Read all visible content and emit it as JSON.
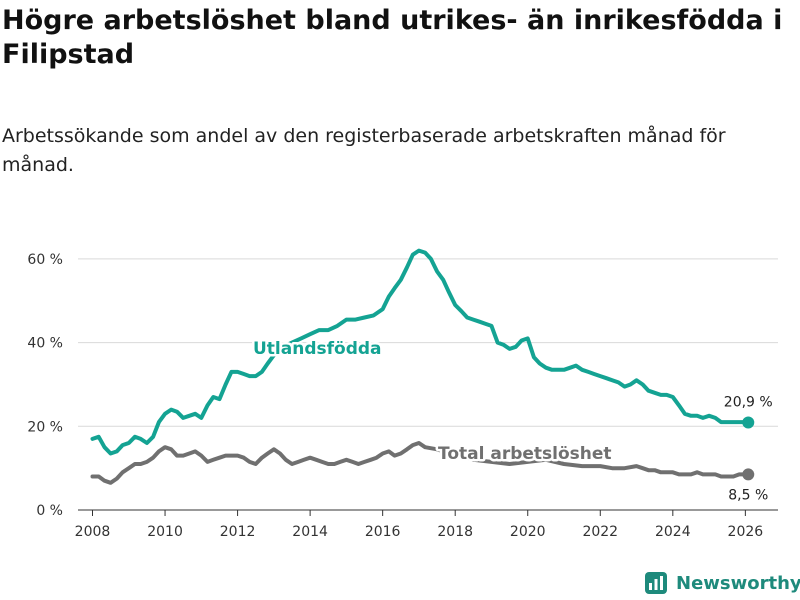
{
  "title": "Högre arbetslöshet bland utrikes- än inrikesfödda i Filipstad",
  "subtitle": "Arbetssökande som andel av den registerbaserade arbetskraften månad för månad.",
  "brand": {
    "name": "Newsworthy"
  },
  "colors": {
    "utlandsfodda": "#14a393",
    "total": "#707070",
    "grid": "#d9d9d9",
    "brand": "#1e8a7c"
  },
  "chart_data": {
    "type": "line",
    "title": "Högre arbetslöshet bland utrikes- än inrikesfödda i Filipstad",
    "xlabel": "",
    "ylabel": "",
    "ylim": [
      0,
      65
    ],
    "xlim": [
      2007.6,
      2026.9
    ],
    "y_ticks": [
      0,
      20,
      40,
      60
    ],
    "y_tick_labels": [
      "0 %",
      "20 %",
      "40 %",
      "60 %"
    ],
    "x_ticks": [
      2008,
      2010,
      2012,
      2014,
      2016,
      2018,
      2020,
      2022,
      2024,
      2026
    ],
    "x_tick_labels": [
      "2008",
      "2010",
      "2012",
      "2014",
      "2016",
      "2018",
      "2020",
      "2022",
      "2024",
      "2026"
    ],
    "series": [
      {
        "name": "Utlandsfödda",
        "label": "Utlandsfödda",
        "end_label": "20,9 %",
        "x": [
          2008.0,
          2008.17,
          2008.33,
          2008.5,
          2008.67,
          2008.83,
          2009.0,
          2009.17,
          2009.33,
          2009.5,
          2009.67,
          2009.83,
          2010.0,
          2010.17,
          2010.33,
          2010.5,
          2010.67,
          2010.83,
          2011.0,
          2011.17,
          2011.33,
          2011.5,
          2011.67,
          2011.83,
          2012.0,
          2012.17,
          2012.33,
          2012.5,
          2012.67,
          2012.83,
          2013.0,
          2013.25,
          2013.5,
          2013.75,
          2014.0,
          2014.25,
          2014.5,
          2014.75,
          2015.0,
          2015.25,
          2015.5,
          2015.75,
          2016.0,
          2016.17,
          2016.33,
          2016.5,
          2016.67,
          2016.83,
          2017.0,
          2017.17,
          2017.33,
          2017.5,
          2017.67,
          2017.83,
          2018.0,
          2018.17,
          2018.33,
          2018.5,
          2018.67,
          2018.83,
          2019.0,
          2019.17,
          2019.33,
          2019.5,
          2019.67,
          2019.83,
          2020.0,
          2020.17,
          2020.33,
          2020.5,
          2020.67,
          2020.83,
          2021.0,
          2021.17,
          2021.33,
          2021.5,
          2021.67,
          2021.83,
          2022.0,
          2022.17,
          2022.33,
          2022.5,
          2022.67,
          2022.83,
          2023.0,
          2023.17,
          2023.33,
          2023.5,
          2023.67,
          2023.83,
          2024.0,
          2024.17,
          2024.33,
          2024.5,
          2024.67,
          2024.83,
          2025.0,
          2025.17,
          2025.33,
          2025.5,
          2025.67,
          2025.83,
          2026.0,
          2026.08
        ],
        "values": [
          17.0,
          17.5,
          15.0,
          13.5,
          14.0,
          15.5,
          16.0,
          17.5,
          17.0,
          16.0,
          17.5,
          21.0,
          23.0,
          24.0,
          23.5,
          22.0,
          22.5,
          23.0,
          22.0,
          25.0,
          27.0,
          26.5,
          30.0,
          33.0,
          33.0,
          32.5,
          32.0,
          32.0,
          33.0,
          35.0,
          37.0,
          39.0,
          40.0,
          41.0,
          42.0,
          43.0,
          43.0,
          44.0,
          45.5,
          45.5,
          46.0,
          46.5,
          48.0,
          51.0,
          53.0,
          55.0,
          58.0,
          61.0,
          62.0,
          61.5,
          60.0,
          57.0,
          55.0,
          52.0,
          49.0,
          47.5,
          46.0,
          45.5,
          45.0,
          44.5,
          44.0,
          40.0,
          39.5,
          38.5,
          39.0,
          40.5,
          41.0,
          36.5,
          35.0,
          34.0,
          33.5,
          33.5,
          33.5,
          34.0,
          34.5,
          33.5,
          33.0,
          32.5,
          32.0,
          31.5,
          31.0,
          30.5,
          29.5,
          30.0,
          31.0,
          30.0,
          28.5,
          28.0,
          27.5,
          27.5,
          27.0,
          25.0,
          23.0,
          22.5,
          22.5,
          22.0,
          22.5,
          22.0,
          21.0,
          21.0,
          21.0,
          21.0,
          21.0,
          20.9
        ]
      },
      {
        "name": "Total arbetslöshet",
        "label": "Total arbetslöshet",
        "end_label": "8,5 %",
        "x": [
          2008.0,
          2008.17,
          2008.33,
          2008.5,
          2008.67,
          2008.83,
          2009.0,
          2009.17,
          2009.33,
          2009.5,
          2009.67,
          2009.83,
          2010.0,
          2010.17,
          2010.33,
          2010.5,
          2010.67,
          2010.83,
          2011.0,
          2011.17,
          2011.33,
          2011.5,
          2011.67,
          2011.83,
          2012.0,
          2012.17,
          2012.33,
          2012.5,
          2012.67,
          2012.83,
          2013.0,
          2013.17,
          2013.33,
          2013.5,
          2013.67,
          2013.83,
          2014.0,
          2014.17,
          2014.33,
          2014.5,
          2014.67,
          2014.83,
          2015.0,
          2015.17,
          2015.33,
          2015.5,
          2015.67,
          2015.83,
          2016.0,
          2016.17,
          2016.33,
          2016.5,
          2016.67,
          2016.83,
          2017.0,
          2017.17,
          2017.5,
          2018.0,
          2018.5,
          2019.0,
          2019.5,
          2020.0,
          2020.5,
          2021.0,
          2021.5,
          2022.0,
          2022.33,
          2022.67,
          2023.0,
          2023.17,
          2023.33,
          2023.5,
          2023.67,
          2023.83,
          2024.0,
          2024.17,
          2024.33,
          2024.5,
          2024.67,
          2024.83,
          2025.0,
          2025.17,
          2025.33,
          2025.5,
          2025.67,
          2025.83,
          2026.0,
          2026.08
        ],
        "values": [
          8.0,
          8.0,
          7.0,
          6.5,
          7.5,
          9.0,
          10.0,
          11.0,
          11.0,
          11.5,
          12.5,
          14.0,
          15.0,
          14.5,
          13.0,
          13.0,
          13.5,
          14.0,
          13.0,
          11.5,
          12.0,
          12.5,
          13.0,
          13.0,
          13.0,
          12.5,
          11.5,
          11.0,
          12.5,
          13.5,
          14.5,
          13.5,
          12.0,
          11.0,
          11.5,
          12.0,
          12.5,
          12.0,
          11.5,
          11.0,
          11.0,
          11.5,
          12.0,
          11.5,
          11.0,
          11.5,
          12.0,
          12.5,
          13.5,
          14.0,
          13.0,
          13.5,
          14.5,
          15.5,
          16.0,
          15.0,
          14.5,
          13.0,
          12.0,
          11.5,
          11.0,
          11.5,
          12.0,
          11.0,
          10.5,
          10.5,
          10.0,
          10.0,
          10.5,
          10.0,
          9.5,
          9.5,
          9.0,
          9.0,
          9.0,
          8.5,
          8.5,
          8.5,
          9.0,
          8.5,
          8.5,
          8.5,
          8.0,
          8.0,
          8.0,
          8.5,
          8.5,
          8.5
        ]
      }
    ]
  }
}
